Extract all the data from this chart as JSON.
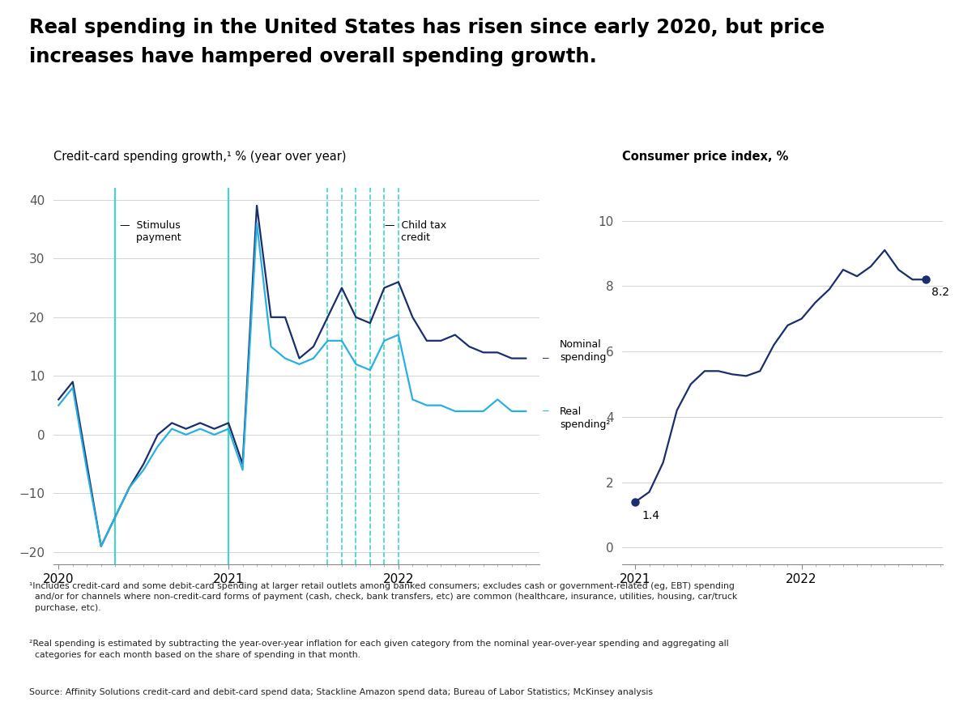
{
  "title_line1": "Real spending in the United States has risen since early 2020, but price",
  "title_line2": "increases have hampered overall spending growth.",
  "left_chart_title": "Credit-card spending growth,¹ % (year over year)",
  "right_chart_title": "Consumer price index, %",
  "nominal_color": "#1a2e6e",
  "real_color": "#29b0e0",
  "cpi_color": "#1a2e6e",
  "stimulus_line_color": "#3dd6d0",
  "child_tax_color": "#3dd6d0",
  "nominal_x": [
    2020.0,
    2020.0833,
    2020.1667,
    2020.25,
    2020.3333,
    2020.4167,
    2020.5,
    2020.5833,
    2020.6667,
    2020.75,
    2020.8333,
    2020.9167,
    2021.0,
    2021.0833,
    2021.1667,
    2021.25,
    2021.3333,
    2021.4167,
    2021.5,
    2021.5833,
    2021.6667,
    2021.75,
    2021.8333,
    2021.9167,
    2022.0,
    2022.0833,
    2022.1667,
    2022.25,
    2022.3333,
    2022.4167,
    2022.5,
    2022.5833,
    2022.6667,
    2022.75
  ],
  "nominal_y": [
    6,
    9,
    -5,
    -19,
    -14,
    -9,
    -5,
    0,
    2,
    1,
    2,
    1,
    2,
    -5,
    39,
    20,
    20,
    13,
    15,
    20,
    25,
    20,
    19,
    25,
    26,
    20,
    16,
    16,
    17,
    15,
    14,
    14,
    13,
    13
  ],
  "real_x": [
    2020.0,
    2020.0833,
    2020.1667,
    2020.25,
    2020.3333,
    2020.4167,
    2020.5,
    2020.5833,
    2020.6667,
    2020.75,
    2020.8333,
    2020.9167,
    2021.0,
    2021.0833,
    2021.1667,
    2021.25,
    2021.3333,
    2021.4167,
    2021.5,
    2021.5833,
    2021.6667,
    2021.75,
    2021.8333,
    2021.9167,
    2022.0,
    2022.0833,
    2022.1667,
    2022.25,
    2022.3333,
    2022.4167,
    2022.5,
    2022.5833,
    2022.6667,
    2022.75
  ],
  "real_y": [
    5,
    8,
    -6,
    -19,
    -14,
    -9,
    -6,
    -2,
    1,
    0,
    1,
    0,
    1,
    -6,
    36,
    15,
    13,
    12,
    13,
    16,
    16,
    12,
    11,
    16,
    17,
    6,
    5,
    5,
    4,
    4,
    4,
    6,
    4,
    4
  ],
  "stimulus_lines": [
    2020.3333,
    2021.0
  ],
  "child_tax_lines": [
    2021.5833,
    2021.6667,
    2021.75,
    2021.8333,
    2021.9167,
    2022.0
  ],
  "left_ylim": [
    -22,
    42
  ],
  "left_yticks": [
    -20,
    -10,
    0,
    10,
    20,
    30,
    40
  ],
  "left_xlim": [
    2019.97,
    2022.83
  ],
  "left_xticks": [
    2020,
    2021,
    2022
  ],
  "cpi_x": [
    2021.0,
    2021.0833,
    2021.1667,
    2021.25,
    2021.3333,
    2021.4167,
    2021.5,
    2021.5833,
    2021.6667,
    2021.75,
    2021.8333,
    2021.9167,
    2022.0,
    2022.0833,
    2022.1667,
    2022.25,
    2022.3333,
    2022.4167,
    2022.5,
    2022.5833,
    2022.6667,
    2022.75
  ],
  "cpi_y": [
    1.4,
    1.7,
    2.6,
    4.2,
    5.0,
    5.4,
    5.4,
    5.3,
    5.25,
    5.4,
    6.2,
    6.8,
    7.0,
    7.5,
    7.9,
    8.5,
    8.3,
    8.6,
    9.1,
    8.5,
    8.2,
    8.2
  ],
  "right_ylim": [
    -0.5,
    11
  ],
  "right_yticks": [
    0,
    2,
    4,
    6,
    8,
    10
  ],
  "right_xlim": [
    2020.92,
    2022.85
  ],
  "right_xticks": [
    2021,
    2022
  ],
  "cpi_start_label": "1.4",
  "cpi_end_label": "8.2",
  "footnote1": "¹Includes credit-card and some debit-card spending at larger retail outlets among banked consumers; excludes cash or government-related (eg, EBT) spending\n  and/or for channels where non-credit-card forms of payment (cash, check, bank transfers, etc) are common (healthcare, insurance, utilities, housing, car/truck\n  purchase, etc).",
  "footnote2": "²Real spending is estimated by subtracting the year-over-year inflation for each given category from the nominal year-over-year spending and aggregating all\n  categories for each month based on the share of spending in that month.",
  "source": "Source: Affinity Solutions credit-card and debit-card spend data; Stackline Amazon spend data; Bureau of Labor Statistics; McKinsey analysis"
}
